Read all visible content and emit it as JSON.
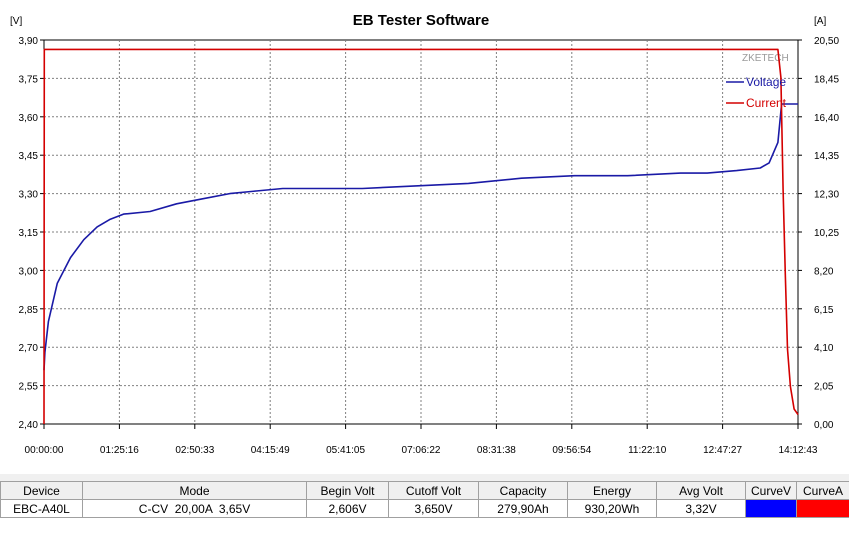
{
  "chart_data": {
    "type": "line",
    "title": "EB Tester Software",
    "watermark": "ZKETECH",
    "y_left": {
      "unit": "[V]",
      "ylim": [
        2.4,
        3.9
      ],
      "ticks": [
        "3,90",
        "3,75",
        "3,60",
        "3,45",
        "3,30",
        "3,15",
        "3,00",
        "2,85",
        "2,70",
        "2,55",
        "2,40"
      ]
    },
    "y_right": {
      "unit": "[A]",
      "ylim": [
        0.0,
        20.5
      ],
      "ticks": [
        "20,50",
        "18,45",
        "16,40",
        "14,35",
        "12,30",
        "10,25",
        "8,20",
        "6,15",
        "4,10",
        "2,05",
        "0,00"
      ]
    },
    "x": {
      "xlim_seconds": [
        0,
        51163
      ],
      "ticks": [
        "00:00:00",
        "01:25:16",
        "02:50:33",
        "04:15:49",
        "05:41:05",
        "07:06:22",
        "08:31:38",
        "09:56:54",
        "11:22:10",
        "12:47:27",
        "14:12:43"
      ]
    },
    "grid": true,
    "legend_position": "top-right",
    "series": [
      {
        "name": "Voltage",
        "color": "#1a1aa6",
        "axis": "left",
        "points": [
          [
            0,
            2.61
          ],
          [
            60,
            2.68
          ],
          [
            300,
            2.8
          ],
          [
            900,
            2.95
          ],
          [
            1800,
            3.05
          ],
          [
            2700,
            3.12
          ],
          [
            3600,
            3.17
          ],
          [
            4500,
            3.2
          ],
          [
            5400,
            3.22
          ],
          [
            7200,
            3.23
          ],
          [
            9000,
            3.26
          ],
          [
            10800,
            3.28
          ],
          [
            12600,
            3.3
          ],
          [
            14400,
            3.31
          ],
          [
            16200,
            3.32
          ],
          [
            18000,
            3.32
          ],
          [
            21600,
            3.32
          ],
          [
            25200,
            3.33
          ],
          [
            28800,
            3.34
          ],
          [
            30600,
            3.35
          ],
          [
            32400,
            3.36
          ],
          [
            36000,
            3.37
          ],
          [
            39600,
            3.37
          ],
          [
            43200,
            3.38
          ],
          [
            45000,
            3.38
          ],
          [
            47000,
            3.39
          ],
          [
            48600,
            3.4
          ],
          [
            49200,
            3.42
          ],
          [
            49800,
            3.5
          ],
          [
            50050,
            3.65
          ],
          [
            50300,
            3.65
          ],
          [
            51163,
            3.65
          ]
        ]
      },
      {
        "name": "Current",
        "color": "#d40000",
        "axis": "right",
        "points": [
          [
            0,
            0.0
          ],
          [
            20,
            20.0
          ],
          [
            49800,
            20.0
          ],
          [
            50000,
            18.5
          ],
          [
            50150,
            12.5
          ],
          [
            50300,
            8.0
          ],
          [
            50450,
            4.0
          ],
          [
            50650,
            2.0
          ],
          [
            50900,
            0.8
          ],
          [
            51163,
            0.5
          ]
        ]
      }
    ]
  },
  "table": {
    "headers": [
      "Device",
      "Mode",
      "Begin Volt",
      "Cutoff Volt",
      "Capacity",
      "Energy",
      "Avg Volt",
      "CurveV",
      "CurveA"
    ],
    "row": [
      "EBC-A40L",
      "C-CV  20,00A  3,65V",
      "2,606V",
      "3,650V",
      "279,90Ah",
      "930,20Wh",
      "3,32V",
      "",
      ""
    ],
    "curve_colors": [
      "#0000ff",
      "#ff0000"
    ]
  }
}
